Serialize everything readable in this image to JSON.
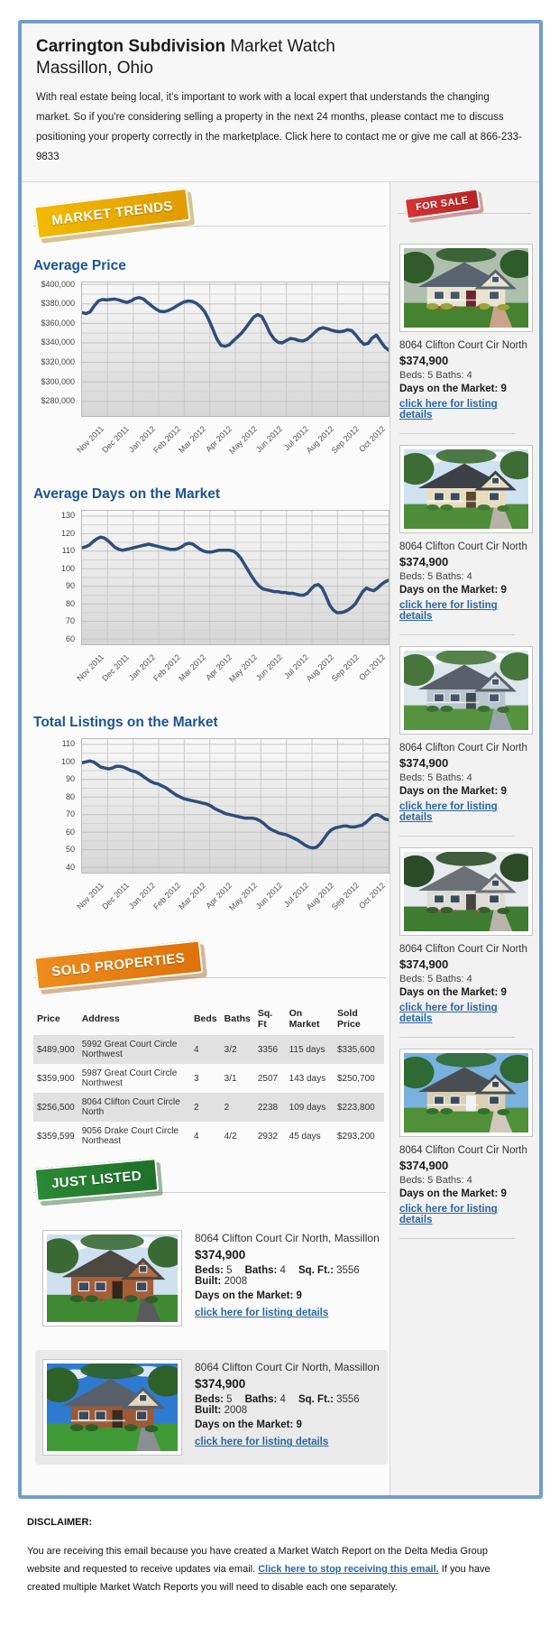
{
  "header": {
    "title_bold": "Carrington Subdivision",
    "title_suffix": " Market Watch",
    "subtitle": "Massillon, Ohio",
    "intro": "With real estate being local, it's important to work with a local expert that understands the changing market. So if you're considering selling a property in the next 24 months, please contact me to discuss positioning your property correctly in the marketplace. Click here to contact me or give me call at 866-233-9833"
  },
  "badges": {
    "market_trends": "MARKET TRENDS",
    "for_sale": "FOR SALE",
    "sold_properties": "SOLD PROPERTIES",
    "just_listed": "JUST LISTED"
  },
  "colors": {
    "frame_border": "#6f9ecf",
    "heading_blue": "#1b5593",
    "chart_line": "#2e4d7b",
    "link_blue": "#2a66a5",
    "badge_gold": "#e8a800",
    "badge_red": "#c62828",
    "badge_orange": "#e07d12",
    "badge_green": "#1d6f28"
  },
  "chart_data": [
    {
      "type": "line",
      "title": "Average Price",
      "xlabel": "",
      "ylabel": "",
      "legend": "none",
      "grid": true,
      "x_labels": [
        "Nov 2011",
        "Dec 2011",
        "Jan 2012",
        "Feb 2012",
        "Mar 2012",
        "Apr 2012",
        "May 2012",
        "Jun 2012",
        "Jul 2012",
        "Aug 2012",
        "Sep 2012",
        "Oct 2012"
      ],
      "ymin": 265000,
      "ymax": 402000,
      "yticks": [
        400000,
        380000,
        360000,
        340000,
        320000,
        300000,
        280000
      ],
      "ytick_labels": [
        "$400,000",
        "$380,000",
        "$360,000",
        "$340,000",
        "$320,000",
        "$300,000",
        "$280,000"
      ],
      "line_color": "#2e4d7b",
      "values": [
        371000,
        370000,
        372000,
        378000,
        383000,
        384500,
        384000,
        384500,
        385000,
        384000,
        382500,
        381500,
        383000,
        385500,
        386500,
        385000,
        381500,
        378000,
        375000,
        372500,
        372000,
        373000,
        375000,
        377500,
        380000,
        382000,
        383000,
        382500,
        380500,
        377000,
        372000,
        364000,
        354000,
        344000,
        337500,
        336500,
        338000,
        342000,
        346000,
        350000,
        355000,
        361000,
        366500,
        369000,
        367000,
        359000,
        350000,
        344000,
        340500,
        340000,
        342500,
        344500,
        344000,
        342500,
        342000,
        343500,
        347000,
        351000,
        354500,
        355500,
        354500,
        353000,
        352000,
        351500,
        352000,
        353500,
        352500,
        348000,
        342500,
        338500,
        339500,
        345000,
        348000,
        342000,
        336000,
        332500
      ]
    },
    {
      "type": "line",
      "title": "Average Days on the Market",
      "xlabel": "",
      "ylabel": "",
      "legend": "none",
      "grid": true,
      "x_labels": [
        "Nov 2011",
        "Dec 2011",
        "Jan 2012",
        "Feb 2012",
        "Mar 2012",
        "Apr 2012",
        "May 2012",
        "Jun 2012",
        "Jul 2012",
        "Aug 2012",
        "Sep 2012",
        "Oct 2012"
      ],
      "ymin": 57,
      "ymax": 133,
      "yticks": [
        130,
        120,
        110,
        100,
        90,
        80,
        70,
        60
      ],
      "ytick_labels": [
        "130",
        "120",
        "110",
        "100",
        "90",
        "80",
        "70",
        "60"
      ],
      "line_color": "#2e4d7b",
      "values": [
        112,
        112.5,
        113.5,
        115.5,
        117,
        118,
        117.5,
        116,
        114,
        112,
        111,
        110.5,
        111,
        111.5,
        112,
        112.5,
        113,
        113.5,
        114,
        113.5,
        113,
        112.5,
        112,
        111.5,
        111,
        111,
        111.5,
        112.5,
        114,
        114.5,
        114,
        112.5,
        111,
        110,
        109.5,
        109.5,
        110,
        110.5,
        110.5,
        110.5,
        110.5,
        110,
        108.5,
        106,
        102.5,
        99,
        95.5,
        92.5,
        90,
        88.5,
        88,
        87.5,
        87,
        87,
        86.5,
        86.5,
        86,
        86,
        85.5,
        85,
        85,
        86,
        88.5,
        90.5,
        91,
        89,
        84.5,
        79.5,
        76.5,
        75,
        75,
        75.5,
        76.5,
        78,
        80,
        83.5,
        87,
        89,
        88,
        87.5,
        89,
        91,
        92.5,
        93.5
      ]
    },
    {
      "type": "line",
      "title": "Total Listings on the Market",
      "xlabel": "",
      "ylabel": "",
      "legend": "none",
      "grid": true,
      "x_labels": [
        "Nov 2011",
        "Dec 2011",
        "Jan 2012",
        "Feb 2012",
        "Mar 2012",
        "Apr 2012",
        "May 2012",
        "Jun 2012",
        "Jul 2012",
        "Aug 2012",
        "Sep 2012",
        "Oct 2012"
      ],
      "ymin": 37,
      "ymax": 113,
      "yticks": [
        110,
        100,
        90,
        80,
        70,
        60,
        50,
        40
      ],
      "ytick_labels": [
        "110",
        "100",
        "90",
        "80",
        "70",
        "60",
        "50",
        "40"
      ],
      "line_color": "#2e4d7b",
      "values": [
        99.5,
        100,
        100.5,
        100,
        98.5,
        97,
        96.5,
        96,
        96.5,
        97.5,
        97.5,
        97,
        96,
        95,
        94.5,
        93.5,
        92,
        90.5,
        89,
        88,
        87.5,
        86.5,
        85.5,
        84,
        82.5,
        81,
        80,
        79,
        78.5,
        78,
        77.5,
        77,
        76.5,
        76,
        75,
        73.5,
        72.5,
        71.5,
        70.5,
        70,
        69.5,
        69,
        68.5,
        68,
        68,
        68,
        67.5,
        66.5,
        65,
        63,
        61.5,
        60.5,
        59.5,
        59,
        58.5,
        57.5,
        56.5,
        55.5,
        54,
        52.5,
        51.5,
        51,
        51.5,
        53.5,
        56.5,
        59.5,
        61.5,
        62.5,
        63,
        63.5,
        63.5,
        63,
        63,
        63.5,
        64,
        65.5,
        67.5,
        69.5,
        70,
        69,
        67.5,
        67
      ]
    }
  ],
  "for_sale": {
    "listings": [
      {
        "address": "8064 Clifton Court Cir North",
        "price": "$374,900",
        "beds_baths": "Beds: 5 Baths: 4",
        "days_on_market": "Days on the Market: 9",
        "link_label": "click here for listing details",
        "photo": {
          "sky": "#aebfae",
          "cloud": false,
          "tree": "#2f5b2a",
          "roof": "#5a6470",
          "wall": "#e9e3cf",
          "gable": "#e9e3cf",
          "lawn": "#44822f",
          "door": "#6c2430",
          "shrub": "#9aa23a",
          "flower": "#c34040",
          "path": "#c9a38a",
          "win": "#45566a",
          "porch": true
        }
      },
      {
        "address": "8064 Clifton Court Cir North",
        "price": "$374,900",
        "beds_baths": "Beds: 5 Baths: 4",
        "days_on_market": "Days on the Market: 9",
        "link_label": "click here for listing details",
        "photo": {
          "sky": "#cfe2f0",
          "cloud": true,
          "tree": "#3d6d35",
          "roof": "#3c4147",
          "wall": "#e8ddbd",
          "gable": "#e8ddbd",
          "lawn": "#4e8d3a",
          "door": "#5b4630",
          "shrub": "#3f7a33",
          "flower": "",
          "path": "#b7b2a6",
          "win": "#3b4a5a",
          "porch": true
        }
      },
      {
        "address": "8064 Clifton Court Cir North",
        "price": "$374,900",
        "beds_baths": "Beds: 5 Baths: 4",
        "days_on_market": "Days on the Market: 9",
        "link_label": "click here for listing details",
        "photo": {
          "sky": "#dde6ec",
          "cloud": true,
          "tree": "#47763c",
          "roof": "#596069",
          "wall": "#b9c6cd",
          "gable": "#c7d2d8",
          "lawn": "#55933f",
          "door": "#3e4a52",
          "shrub": "#3c6e33",
          "flower": "",
          "path": "#9aa4ab",
          "win": "#45566a",
          "porch": true
        }
      },
      {
        "address": "8064 Clifton Court Cir North",
        "price": "$374,900",
        "beds_baths": "Beds: 5 Baths: 4",
        "days_on_market": "Days on the Market: 9",
        "link_label": "click here for listing details",
        "photo": {
          "sky": "#e7ebee",
          "cloud": false,
          "tree": "#2c4c28",
          "roof": "#6b7177",
          "wall": "#dddcd6",
          "gable": "#dddcd6",
          "lawn": "#3f7c31",
          "door": "#4a4440",
          "shrub": "#355f2d",
          "flower": "#c04a6b",
          "path": "#b9b4ab",
          "win": "#3b4a5a",
          "porch": false
        }
      },
      {
        "address": "8064 Clifton Court Cir North",
        "price": "$374,900",
        "beds_baths": "Beds: 5 Baths: 4",
        "days_on_market": "Days on the Market: 9",
        "link_label": "click here for listing details",
        "photo": {
          "sky": "#79b0dc",
          "cloud": false,
          "tree": "#2e6a33",
          "roof": "#494e54",
          "wall": "#d9cfb2",
          "gable": "#e6e0cc",
          "lawn": "#4f9038",
          "door": "#f2f2f2",
          "shrub": "#33702f",
          "flower": "",
          "path": "#cfc9bb",
          "win": "#3b4a5a",
          "porch": true
        }
      }
    ]
  },
  "sold_properties": {
    "headers": [
      "Price",
      "Address",
      "Beds",
      "Baths",
      "Sq. Ft",
      "On Market",
      "Sold Price"
    ],
    "rows": [
      [
        "$489,900",
        "5992 Great Court Circle Northwest",
        "4",
        "3/2",
        "3356",
        "115 days",
        "$335,600"
      ],
      [
        "$359,900",
        "5987 Great Court Circle Northwest",
        "3",
        "3/1",
        "2507",
        "143 days",
        "$250,700"
      ],
      [
        "$256,500",
        "8064 Clifton Court Circle North",
        "2",
        "2",
        "2238",
        "109 days",
        "$223,800"
      ],
      [
        "$359,599",
        "9056 Drake Court Circle Northeast",
        "4",
        "4/2",
        "2932",
        "45 days",
        "$293,200"
      ]
    ]
  },
  "just_listed": {
    "items": [
      {
        "address": "8064 Clifton Court Cir North, Massillon",
        "price": "$374,900",
        "specs": [
          {
            "label": "Beds:",
            "value": "5"
          },
          {
            "label": "Baths:",
            "value": "4"
          },
          {
            "label": "Sq. Ft.:",
            "value": "3556"
          },
          {
            "label": "Built:",
            "value": "2008"
          }
        ],
        "days_on_market": "Days on the Market: 9",
        "link_label": "click here for listing details",
        "highlight": false,
        "photo": {
          "sky": "#cfe0ee",
          "cloud": true,
          "tree": "#3a6a33",
          "roof": "#4c4741",
          "wall": "#a65e38",
          "gable": "#b56a40",
          "lawn": "#3f8a32",
          "door": "#33251c",
          "shrub": "#2f5f2a",
          "flower": "#b03838",
          "path": "#5a5a5e",
          "win": "#3b4a5a",
          "porch": false
        }
      },
      {
        "address": "8064 Clifton Court Cir North, Massillon",
        "price": "$374,900",
        "specs": [
          {
            "label": "Beds:",
            "value": "5"
          },
          {
            "label": "Baths:",
            "value": "4"
          },
          {
            "label": "Sq. Ft.:",
            "value": "3556"
          },
          {
            "label": "Built:",
            "value": "2008"
          }
        ],
        "days_on_market": "Days on the Market: 9",
        "link_label": "click here for listing details",
        "highlight": true,
        "photo": {
          "sky": "#2f7ad1",
          "cloud": true,
          "tree": "#2e6128",
          "roof": "#57606a",
          "wall": "#9c5a36",
          "gable": "#e3d7b8",
          "lawn": "#3f9a35",
          "door": "#3a2a20",
          "shrub": "#2c6128",
          "flower": "",
          "path": "#8b8f94",
          "win": "#3b4a5a",
          "porch": true
        }
      }
    ]
  },
  "footer": {
    "label": "DISCLAIMER:",
    "text_before": "You are receiving this email because you have created a Market Watch Report on the Delta Media Group website and requested to receive updates via email. ",
    "link": "Click here to stop receiving this email.",
    "text_after": " If you have created multiple Market Watch Reports you will need to disable each one separately."
  }
}
